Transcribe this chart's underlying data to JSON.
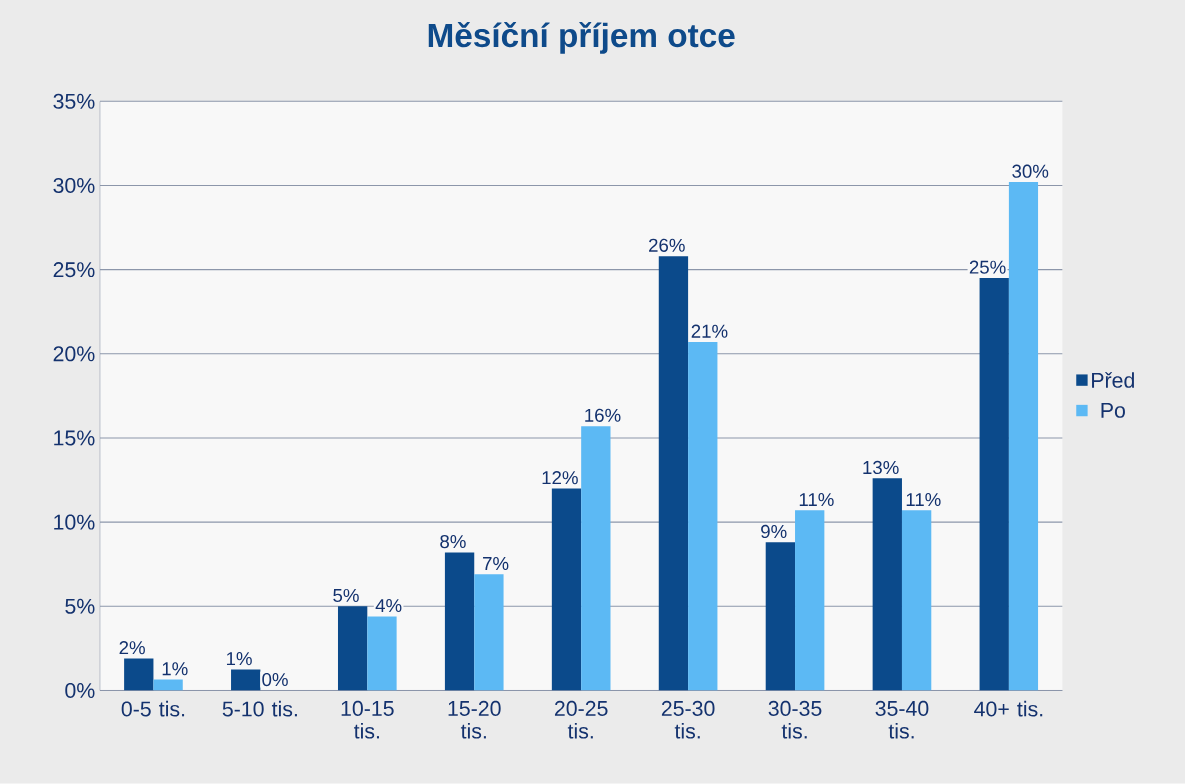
{
  "chart_data": {
    "type": "bar",
    "title": "Měsíční příjem otce",
    "categories": [
      "0-5 tis.",
      "5-10 tis.",
      "10-15 tis.",
      "15-20 tis.",
      "20-25 tis.",
      "25-30 tis.",
      "30-35 tis.",
      "35-40 tis.",
      "40+ tis."
    ],
    "series": [
      {
        "name": "Před",
        "color": "#0b4a8b",
        "values": [
          1.9,
          1.25,
          5.0,
          8.2,
          12.0,
          25.8,
          8.8,
          12.6,
          24.5
        ],
        "value_labels": [
          "2%",
          "1%",
          "5%",
          "8%",
          "12%",
          "26%",
          "9%",
          "13%",
          "25%"
        ]
      },
      {
        "name": "Po",
        "color": "#5cb9f4",
        "values": [
          0.65,
          0,
          4.4,
          6.9,
          15.7,
          20.7,
          10.7,
          10.7,
          30.2
        ],
        "value_labels": [
          "1%",
          "0%",
          "4%",
          "7%",
          "16%",
          "21%",
          "11%",
          "11%",
          "30%"
        ]
      }
    ],
    "ylim": [
      0,
      35
    ],
    "yticks": [
      {
        "value": 0,
        "label": "0%"
      },
      {
        "value": 5,
        "label": "5%"
      },
      {
        "value": 10,
        "label": "10%"
      },
      {
        "value": 15,
        "label": "15%"
      },
      {
        "value": 20,
        "label": "20%"
      },
      {
        "value": 25,
        "label": "25%"
      },
      {
        "value": 30,
        "label": "30%"
      },
      {
        "value": 35,
        "label": "35%"
      }
    ],
    "grid": "y",
    "legend": "right"
  }
}
